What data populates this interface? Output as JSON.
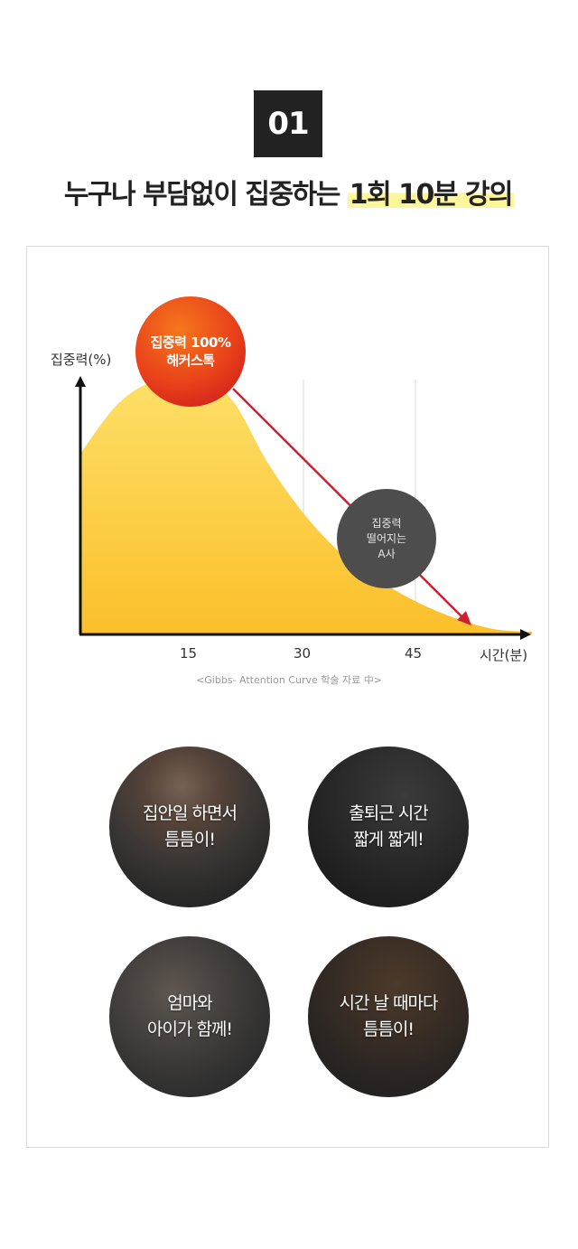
{
  "badge": "01",
  "headline": {
    "main": "누구나 부담없이 집중하는 ",
    "highlight": "1회 10분 강의"
  },
  "chart": {
    "y_label": "집중력(%)",
    "x_label": "시간(분)",
    "x_ticks": [
      "15",
      "30",
      "45"
    ],
    "caption": "<Gibbs- Attention Curve 학술 자료 中>",
    "red_bubble": {
      "line1": "집중력 100%",
      "line2": "해커스톡"
    },
    "gray_bubble": {
      "line1": "집중력",
      "line2": "떨어지는",
      "line3": "A사"
    },
    "colors": {
      "curve_top": "#fde068",
      "curve_bottom": "#fbbf2a",
      "arrow": "#d01f2e",
      "axis": "#111111"
    }
  },
  "chart_data": {
    "type": "area",
    "x": [
      0,
      5,
      10,
      15,
      20,
      25,
      30,
      35,
      40,
      45,
      50,
      55,
      60
    ],
    "values": [
      69,
      88,
      97,
      98,
      90,
      65,
      45,
      30,
      20,
      12,
      6,
      2,
      1
    ],
    "title": "",
    "xlabel": "시간(분)",
    "ylabel": "집중력(%)",
    "xticks": [
      15,
      30,
      45
    ]
  },
  "features": [
    {
      "line1": "집안일 하면서",
      "line2": "틈틈이!"
    },
    {
      "line1": "출퇴근 시간",
      "line2": "짧게 짧게!"
    },
    {
      "line1": "엄마와",
      "line2": "아이가 함께!"
    },
    {
      "line1": "시간 날 때마다",
      "line2": "틈틈이!"
    }
  ]
}
